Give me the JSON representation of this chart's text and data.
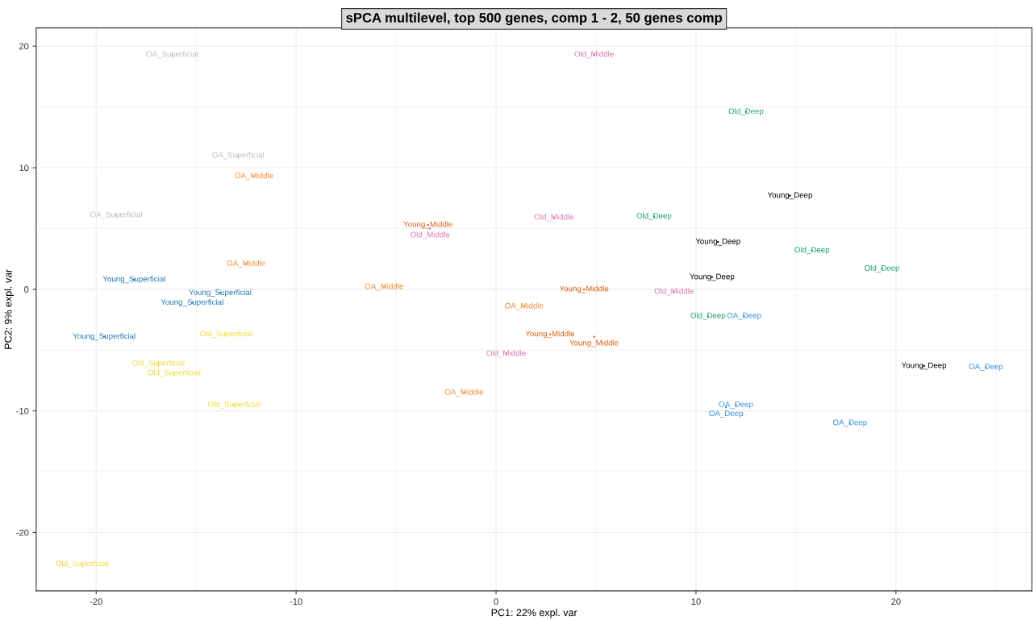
{
  "chart_data": {
    "type": "scatter",
    "title": "sPCA multilevel, top 500 genes, comp 1 - 2, 50 genes comp",
    "xlabel": "PC1: 22% expl. var",
    "ylabel": "PC2: 9% expl. var",
    "xlim": [
      -23,
      26.8
    ],
    "ylim": [
      -24.8,
      21.5
    ],
    "xticks": [
      -20,
      -10,
      0,
      10,
      20
    ],
    "yticks": [
      -20,
      -10,
      0,
      10,
      20
    ],
    "grid": true,
    "series": [
      {
        "name": "OA_Superficial",
        "color": "#bdbdbd",
        "x": [
          -16.2,
          -12.9,
          -19.0
        ],
        "values": [
          19.3,
          11.0,
          6.1
        ]
      },
      {
        "name": "OA_Middle",
        "color": "#f68b33",
        "x": [
          -12.1,
          -12.5,
          -5.6,
          1.4,
          -1.6
        ],
        "values": [
          9.3,
          2.1,
          0.2,
          -1.4,
          -8.5
        ]
      },
      {
        "name": "Young_Superficial",
        "color": "#1f78b4",
        "x": [
          -18.1,
          -13.8,
          -15.2,
          -19.6
        ],
        "values": [
          0.8,
          -0.3,
          -1.1,
          -3.9
        ]
      },
      {
        "name": "Old_Superficial",
        "color": "#f2d73a",
        "x": [
          -13.5,
          -16.9,
          -16.1,
          -13.1,
          -20.7
        ],
        "values": [
          -3.7,
          -6.1,
          -6.9,
          -9.5,
          -22.6
        ]
      },
      {
        "name": "Young_Middle",
        "color": "#d95f0e",
        "x": [
          -3.4,
          4.4,
          2.7,
          4.9
        ],
        "values": [
          5.3,
          0.0,
          -3.7,
          -3.9
        ]
      },
      {
        "name": "Old_Middle",
        "color": "#de77ae",
        "x": [
          4.9,
          -3.3,
          2.9,
          8.9,
          0.5
        ],
        "values": [
          19.3,
          5.0,
          5.9,
          -0.2,
          -5.3
        ]
      },
      {
        "name": "Old_Deep",
        "color": "#1b9e77",
        "x": [
          12.5,
          7.9,
          15.8,
          19.3,
          10.6
        ],
        "values": [
          14.6,
          6.0,
          3.2,
          1.7,
          -2.2
        ]
      },
      {
        "name": "Young_Deep",
        "color": "#000000",
        "x": [
          14.7,
          11.1,
          10.8,
          21.4
        ],
        "values": [
          7.7,
          3.9,
          1.0,
          -6.3
        ]
      },
      {
        "name": "OA_Deep",
        "color": "#3a8fd8",
        "x": [
          12.4,
          24.5,
          12.0,
          11.5,
          17.7
        ],
        "values": [
          -2.2,
          -6.4,
          -9.5,
          -9.7,
          -11.0
        ]
      }
    ]
  }
}
